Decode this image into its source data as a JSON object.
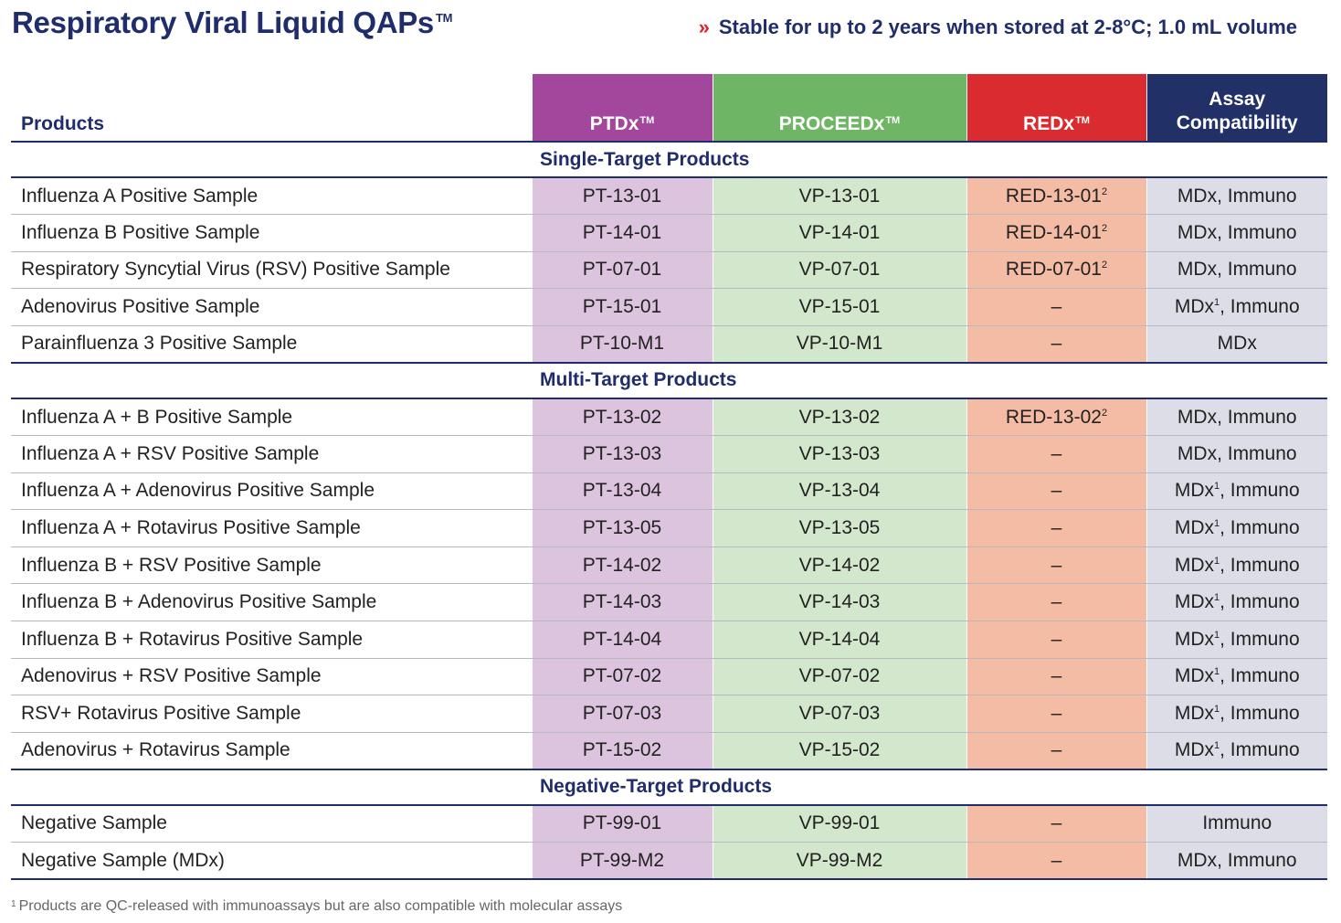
{
  "title": "Respiratory Viral Liquid QAPs",
  "title_mark": "TM",
  "subtitle_chevron": "»",
  "subtitle": "Stable for up to 2 years when stored at 2-8°C; 1.0 mL volume",
  "headers": {
    "products": "Products",
    "ptdx": "PTDx",
    "proceed": "PROCEEDx",
    "redx": "REDx",
    "mark": "TM",
    "assay_line1": "Assay",
    "assay_line2": "Compatibility"
  },
  "colors": {
    "navy": "#1f2d6b",
    "ptdx": "#a2479c",
    "proceed": "#6fb566",
    "redx": "#da2b30",
    "assay": "#213067"
  },
  "sections": [
    {
      "title": "Single-Target Products",
      "rows": [
        {
          "name": "Influenza A Positive Sample",
          "ptdx": "PT-13-01",
          "proceed": "VP-13-01",
          "redx": "RED-13-01",
          "redx_sup": "2",
          "assay": "MDx, Immuno",
          "assay_sup": ""
        },
        {
          "name": "Influenza B Positive Sample",
          "ptdx": "PT-14-01",
          "proceed": "VP-14-01",
          "redx": "RED-14-01",
          "redx_sup": "2",
          "assay": "MDx, Immuno",
          "assay_sup": ""
        },
        {
          "name": "Respiratory Syncytial Virus (RSV) Positive Sample",
          "ptdx": "PT-07-01",
          "proceed": "VP-07-01",
          "redx": "RED-07-01",
          "redx_sup": "2",
          "assay": "MDx, Immuno",
          "assay_sup": ""
        },
        {
          "name": "Adenovirus Positive Sample",
          "ptdx": "PT-15-01",
          "proceed": "VP-15-01",
          "redx": "–",
          "redx_sup": "",
          "assay": "MDx",
          "assay_sup": "1",
          "assay_rest": ", Immuno"
        },
        {
          "name": "Parainfluenza 3 Positive Sample",
          "ptdx": "PT-10-M1",
          "proceed": "VP-10-M1",
          "redx": "–",
          "redx_sup": "",
          "assay": "MDx",
          "assay_sup": ""
        }
      ]
    },
    {
      "title": "Multi-Target Products",
      "rows": [
        {
          "name": "Influenza A + B Positive Sample",
          "ptdx": "PT-13-02",
          "proceed": "VP-13-02",
          "redx": "RED-13-02",
          "redx_sup": "2",
          "assay": "MDx, Immuno",
          "assay_sup": ""
        },
        {
          "name": "Influenza A + RSV Positive Sample",
          "ptdx": "PT-13-03",
          "proceed": "VP-13-03",
          "redx": "–",
          "redx_sup": "",
          "assay": "MDx, Immuno",
          "assay_sup": ""
        },
        {
          "name": "Influenza A + Adenovirus Positive Sample",
          "ptdx": "PT-13-04",
          "proceed": "VP-13-04",
          "redx": "–",
          "redx_sup": "",
          "assay": "MDx",
          "assay_sup": "1",
          "assay_rest": ", Immuno"
        },
        {
          "name": "Influenza A + Rotavirus Positive Sample",
          "ptdx": "PT-13-05",
          "proceed": "VP-13-05",
          "redx": "–",
          "redx_sup": "",
          "assay": "MDx",
          "assay_sup": "1",
          "assay_rest": ", Immuno"
        },
        {
          "name": "Influenza B + RSV Positive Sample",
          "ptdx": "PT-14-02",
          "proceed": "VP-14-02",
          "redx": "–",
          "redx_sup": "",
          "assay": "MDx",
          "assay_sup": "1",
          "assay_rest": ", Immuno"
        },
        {
          "name": "Influenza B + Adenovirus Positive Sample",
          "ptdx": "PT-14-03",
          "proceed": "VP-14-03",
          "redx": "–",
          "redx_sup": "",
          "assay": "MDx",
          "assay_sup": "1",
          "assay_rest": ", Immuno"
        },
        {
          "name": "Influenza B + Rotavirus Positive Sample",
          "ptdx": "PT-14-04",
          "proceed": "VP-14-04",
          "redx": "–",
          "redx_sup": "",
          "assay": "MDx",
          "assay_sup": "1",
          "assay_rest": ", Immuno"
        },
        {
          "name": "Adenovirus + RSV Positive Sample",
          "ptdx": "PT-07-02",
          "proceed": "VP-07-02",
          "redx": "–",
          "redx_sup": "",
          "assay": "MDx",
          "assay_sup": "1",
          "assay_rest": ", Immuno"
        },
        {
          "name": "RSV+ Rotavirus Positive Sample",
          "ptdx": "PT-07-03",
          "proceed": "VP-07-03",
          "redx": "–",
          "redx_sup": "",
          "assay": "MDx",
          "assay_sup": "1",
          "assay_rest": ", Immuno"
        },
        {
          "name": "Adenovirus + Rotavirus Sample",
          "ptdx": "PT-15-02",
          "proceed": "VP-15-02",
          "redx": "–",
          "redx_sup": "",
          "assay": "MDx",
          "assay_sup": "1",
          "assay_rest": ", Immuno"
        }
      ]
    },
    {
      "title": "Negative-Target Products",
      "rows": [
        {
          "name": "Negative Sample",
          "ptdx": "PT-99-01",
          "proceed": "VP-99-01",
          "redx": "–",
          "redx_sup": "",
          "assay": "Immuno",
          "assay_sup": ""
        },
        {
          "name": "Negative Sample (MDx)",
          "ptdx": "PT-99-M2",
          "proceed": "VP-99-M2",
          "redx": "–",
          "redx_sup": "",
          "assay": "MDx, Immuno",
          "assay_sup": ""
        }
      ]
    }
  ],
  "footnote_mark": "1",
  "footnote": "Products are QC-released with immunoassays but are also compatible with molecular assays"
}
